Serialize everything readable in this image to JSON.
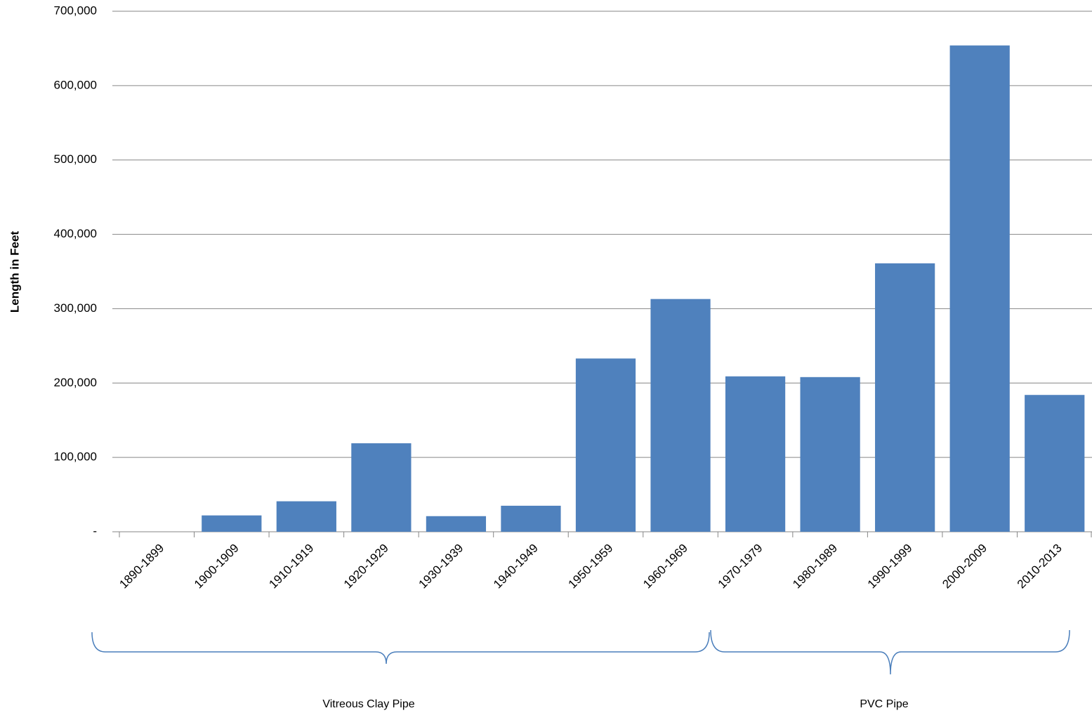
{
  "chart_data": {
    "type": "bar",
    "y_label": "Length in Feet",
    "categories": [
      "1890-1899",
      "1900-1909",
      "1910-1919",
      "1920-1929",
      "1930-1939",
      "1940-1949",
      "1950-1959",
      "1960-1969",
      "1970-1979",
      "1980-1989",
      "1990-1999",
      "2000-2009",
      "2010-2013"
    ],
    "values": [
      0,
      22000,
      41000,
      119000,
      21000,
      35000,
      233000,
      313000,
      209000,
      208000,
      361000,
      654000,
      184000
    ],
    "color": "#4f81bd",
    "ylim": [
      0,
      700000
    ],
    "yticks": [
      {
        "value": 0,
        "label": "-"
      },
      {
        "value": 100000,
        "label": "100,000"
      },
      {
        "value": 200000,
        "label": "200,000"
      },
      {
        "value": 300000,
        "label": "300,000"
      },
      {
        "value": 400000,
        "label": "400,000"
      },
      {
        "value": 500000,
        "label": "500,000"
      },
      {
        "value": 600000,
        "label": "600,000"
      },
      {
        "value": 700000,
        "label": "700,000"
      }
    ],
    "grid": true,
    "annotations": [
      "Vitreous Clay Pipe",
      "PVC Pipe"
    ]
  }
}
